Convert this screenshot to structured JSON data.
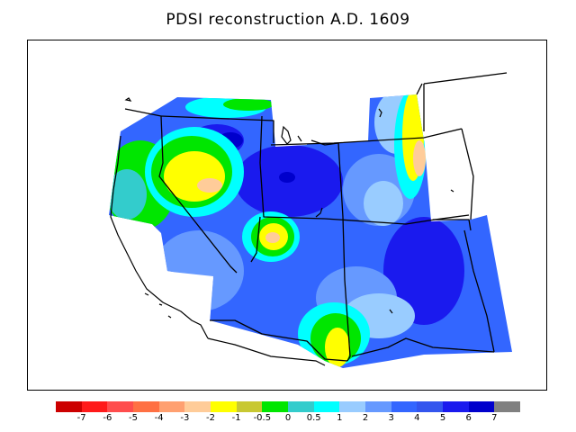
{
  "title": "PDSI reconstruction A.D. 1609",
  "legend": {
    "colors": [
      "#cc0000",
      "#ff1a1a",
      "#ff4d4d",
      "#ff7043",
      "#ffa070",
      "#ffcc99",
      "#ffff00",
      "#c8c832",
      "#00e600",
      "#33cccc",
      "#00ffff",
      "#99ccff",
      "#6699ff",
      "#3366ff",
      "#3355ee",
      "#1a1aee",
      "#0000cc",
      "#808080"
    ],
    "labels": [
      "-7",
      "-6",
      "-5",
      "-4",
      "-3",
      "-2",
      "-1",
      "-0.5",
      "0",
      "0.5",
      "1",
      "2",
      "3",
      "4",
      "5",
      "6",
      "7"
    ]
  },
  "palette": {
    "background": "#3366ff",
    "light_blue": "#99ccff",
    "mid_blue": "#6699ff",
    "dark_blue": "#1a1aee",
    "navy": "#0000cc",
    "cyan": "#00ffff",
    "teal": "#33cccc",
    "green": "#00e600",
    "yellow": "#ffff00",
    "peach": "#ffcc99"
  }
}
